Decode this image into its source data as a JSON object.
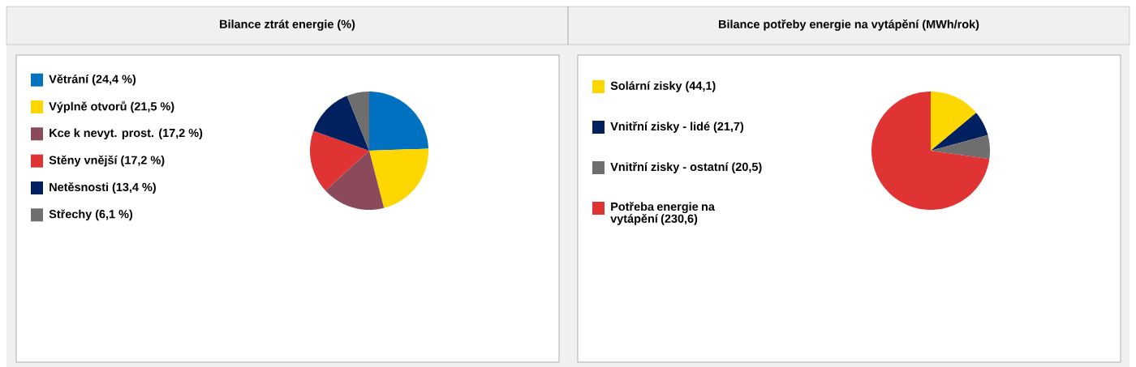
{
  "chart_data": [
    {
      "type": "pie",
      "title": "Bilance ztrát energie (%)",
      "categories": [
        "Větrání (24,4 %)",
        "Výplně otvorů (21,5 %)",
        "Kce k nevyt. prost. (17,2 %)",
        "Stěny vnější (17,2 %)",
        "Netěsnosti (13,4 %)",
        "Střechy (6,1 %)"
      ],
      "values": [
        24.4,
        21.5,
        17.2,
        17.2,
        13.4,
        6.1
      ],
      "colors": [
        "#0070c0",
        "#ffd700",
        "#8b4a5c",
        "#e03434",
        "#002060",
        "#6e6e6e"
      ],
      "legend": "left"
    },
    {
      "type": "pie",
      "title": "Bilance potřeby energie na vytápění (MWh/rok)",
      "categories": [
        "Solární zisky (44,1)",
        "Vnitřní zisky - lidé (21,7)",
        "Vnitřní zisky - ostatní (20,5)",
        "Potřeba energie na vytápění (230,6)"
      ],
      "values": [
        44.1,
        21.7,
        20.5,
        230.6
      ],
      "colors": [
        "#ffd700",
        "#002060",
        "#6e6e6e",
        "#e03434"
      ],
      "legend": "left"
    }
  ]
}
